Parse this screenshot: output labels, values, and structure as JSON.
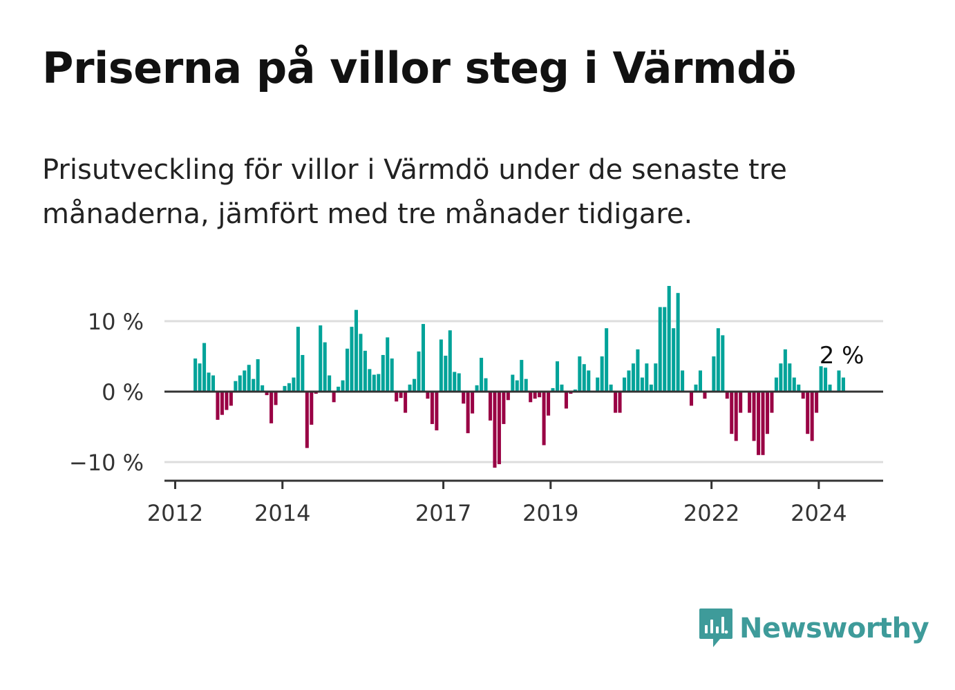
{
  "title": "Priserna på villor steg i Värmdö",
  "subtitle": "Prisutveckling för villor i Värmdö under de senaste tre månaderna, jämfört med tre månader tidigare.",
  "brand": {
    "name": "Newsworthy",
    "icon": "newsworthy-logo-icon",
    "color": "#3e9b9a"
  },
  "colors": {
    "positive": "#00a399",
    "negative": "#990044",
    "grid": "#dddddd",
    "axis": "#333333"
  },
  "chart_data": {
    "type": "bar",
    "title": "Priserna på villor steg i Värmdö",
    "xlabel": "",
    "ylabel": "",
    "ylim": [
      -12.5,
      15
    ],
    "y_ticks": [
      {
        "value": 10,
        "label": "10 %"
      },
      {
        "value": 0,
        "label": "0 %"
      },
      {
        "value": -10,
        "label": "−10 %"
      }
    ],
    "x_ticks": [
      {
        "year": 2012,
        "label": "2012"
      },
      {
        "year": 2014,
        "label": "2014"
      },
      {
        "year": 2017,
        "label": "2017"
      },
      {
        "year": 2019,
        "label": "2019"
      },
      {
        "year": 2022,
        "label": "2022"
      },
      {
        "year": 2024,
        "label": "2024"
      }
    ],
    "x_range_years": [
      2011.8,
      2025.2
    ],
    "series_start": {
      "year": 2012,
      "month": 5
    },
    "series_unit": "percent change vs three months earlier (monthly)",
    "grid": true,
    "last_value_label": "2 %",
    "values": [
      4.7,
      4.0,
      6.9,
      2.7,
      2.3,
      -4.0,
      -3.3,
      -2.6,
      -2.0,
      1.5,
      2.3,
      3.0,
      3.8,
      1.8,
      4.6,
      0.9,
      -0.5,
      -4.5,
      -1.9,
      0,
      0.8,
      1.2,
      2.0,
      9.2,
      5.2,
      -8.0,
      -4.7,
      -0.3,
      9.4,
      7.0,
      2.3,
      -1.5,
      0.7,
      1.6,
      6.1,
      9.2,
      11.6,
      8.2,
      5.8,
      3.2,
      2.4,
      2.5,
      5.2,
      7.7,
      4.7,
      -1.4,
      -0.9,
      -3.0,
      1.0,
      1.8,
      5.7,
      9.6,
      -1.0,
      -4.6,
      -5.5,
      7.4,
      5.1,
      8.7,
      2.8,
      2.6,
      -1.7,
      -5.9,
      -3.1,
      0.9,
      4.8,
      1.9,
      -4.1,
      -10.8,
      -10.3,
      -4.6,
      -1.2,
      2.4,
      1.6,
      4.5,
      1.8,
      -1.5,
      -1.0,
      -0.8,
      -7.6,
      -3.4,
      0.5,
      4.3,
      1.0,
      -2.4,
      -0.3,
      0.3,
      5.0,
      3.9,
      3.0,
      0,
      2.0,
      5.0,
      9.0,
      1.0,
      -3.0,
      -3.0,
      2.0,
      3.0,
      4.0,
      6.0,
      2.0,
      4.0,
      1.0,
      4.0,
      12.0,
      12.0,
      15.0,
      9.0,
      14.0,
      3.0,
      0,
      -2.0,
      1.0,
      3.0,
      -1.0,
      0,
      5.0,
      9.0,
      8.0,
      -1.0,
      -6.0,
      -7.0,
      -3.0,
      0,
      -3.0,
      -7.0,
      -9.0,
      -9.0,
      -6.0,
      -3.0,
      2.0,
      4.0,
      6.0,
      4.0,
      2.0,
      1.0,
      -1.0,
      -6.0,
      -7.0,
      -3.0,
      3.6,
      3.4,
      1.0,
      0,
      3.0,
      2.0
    ]
  }
}
